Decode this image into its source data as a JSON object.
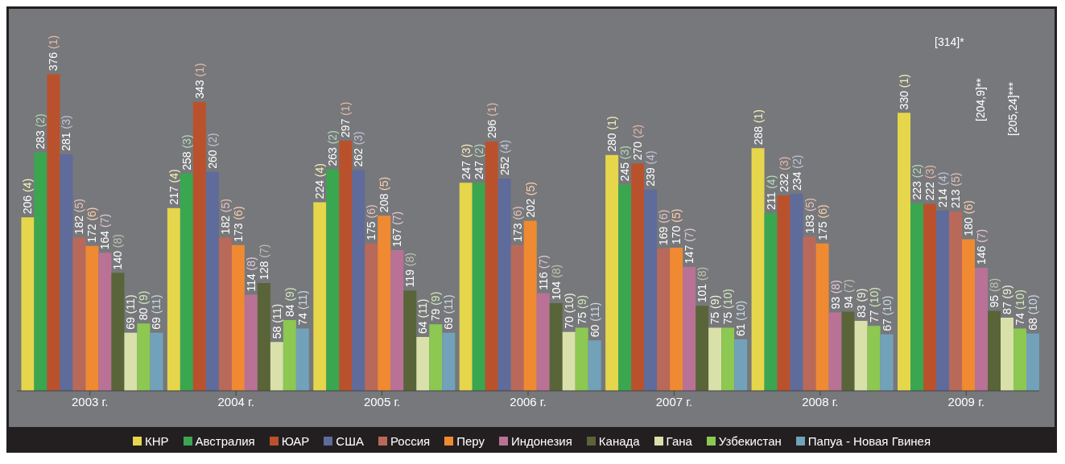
{
  "chart_data": {
    "type": "bar",
    "categories": [
      "2003 г.",
      "2004 г.",
      "2005 г.",
      "2006 г.",
      "2007 г.",
      "2008 г.",
      "2009 г."
    ],
    "series": [
      {
        "name": "КНР",
        "color": "#e6d64c",
        "values": [
          206,
          217,
          224,
          247,
          280,
          288,
          330
        ],
        "value_labels": [
          "206 (4)",
          "217 (4)",
          "224 (4)",
          "247 (3)",
          "280 (1)",
          "288 (1)",
          "330 (1)"
        ]
      },
      {
        "name": "Австралия",
        "color": "#3ba650",
        "values": [
          283,
          258,
          263,
          247,
          245,
          211,
          223
        ],
        "value_labels": [
          "283 (2)",
          "258 (3)",
          "263 (2)",
          "247 (2)",
          "245 (3)",
          "211 (4)",
          "223 (2)"
        ]
      },
      {
        "name": "ЮАР",
        "color": "#b9522c",
        "values": [
          376,
          343,
          297,
          296,
          270,
          232,
          222
        ],
        "value_labels": [
          "376 (1)",
          "343 (1)",
          "297 (1)",
          "296 (1)",
          "270 (2)",
          "232 (3)",
          "222 (3)"
        ]
      },
      {
        "name": "США",
        "color": "#5f6b9b",
        "values": [
          281,
          260,
          262,
          252,
          239,
          234,
          214
        ],
        "value_labels": [
          "281 (3)",
          "260 (2)",
          "262 (3)",
          "252 (4)",
          "239 (4)",
          "234 (2)",
          "214 (4)"
        ]
      },
      {
        "name": "Россия",
        "color": "#b9695a",
        "values": [
          182,
          182,
          175,
          173,
          169,
          183,
          213
        ],
        "value_labels": [
          "182 (5)",
          "182 (5)",
          "175 (6)",
          "173 (6)",
          "169 (6)",
          "183 (5)",
          "213 (5)"
        ]
      },
      {
        "name": "Перу",
        "color": "#ef8a32",
        "values": [
          172,
          173,
          208,
          202,
          170,
          175,
          180
        ],
        "value_labels": [
          "172 (6)",
          "173 (6)",
          "208 (5)",
          "202 (5)",
          "170 (5)",
          "175 (6)",
          "180 (6)"
        ]
      },
      {
        "name": "Индонезия",
        "color": "#b97295",
        "values": [
          164,
          114,
          167,
          116,
          147,
          93,
          146
        ],
        "value_labels": [
          "164 (7)",
          "114 (8)",
          "167 (7)",
          "116 (7)",
          "147 (7)",
          "93 (8)",
          "146 (7)"
        ]
      },
      {
        "name": "Канада",
        "color": "#5a6439",
        "values": [
          140,
          128,
          119,
          104,
          101,
          94,
          95
        ],
        "value_labels": [
          "140 (8)",
          "128 (7)",
          "119 (8)",
          "104 (8)",
          "101 (8)",
          "94 (7)",
          "95 (8)"
        ]
      },
      {
        "name": "Гана",
        "color": "#d9e0aa",
        "values": [
          69,
          58,
          64,
          70,
          75,
          83,
          87
        ],
        "value_labels": [
          "69 (11)",
          "58 (11)",
          "64 (11)",
          "70 (10)",
          "75 (9)",
          "83 (9)",
          "87 (9)"
        ]
      },
      {
        "name": "Узбекистан",
        "color": "#8cc852",
        "values": [
          80,
          84,
          79,
          75,
          75,
          77,
          74
        ],
        "value_labels": [
          "80 (9)",
          "84 (9)",
          "79 (9)",
          "75 (9)",
          "75 (10)",
          "77 (10)",
          "74 (10)"
        ]
      },
      {
        "name": "Папуа - Новая Гвинея",
        "color": "#72a2ba",
        "values": [
          69,
          74,
          69,
          60,
          61,
          67,
          68
        ],
        "value_labels": [
          "69 (11)",
          "74 (11)",
          "69 (11)",
          "60 (11)",
          "61 (10)",
          "67 (10)",
          "68 (10)"
        ]
      }
    ],
    "annotations": [
      "[314]*",
      "[204,9]**",
      "[205,24]***"
    ],
    "legend": "bottom",
    "grid": false
  }
}
